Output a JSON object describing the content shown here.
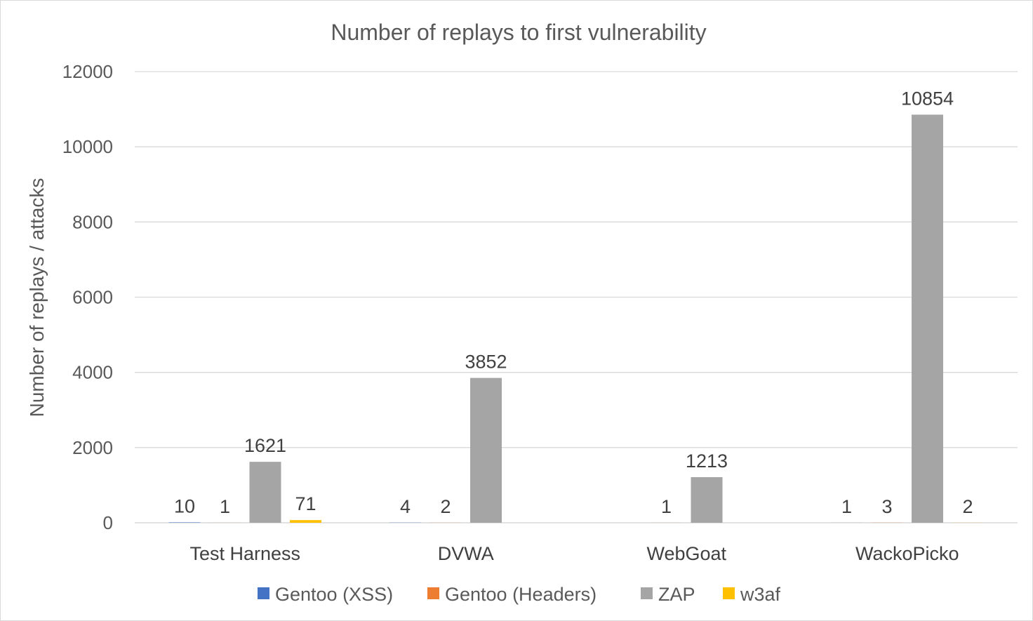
{
  "chart_data": {
    "type": "bar",
    "title": "Number of replays to first vulnerability",
    "xlabel": "",
    "ylabel": "Number of replays / attacks",
    "ylim": [
      0,
      12000
    ],
    "yticks": [
      0,
      2000,
      4000,
      6000,
      8000,
      10000,
      12000
    ],
    "categories": [
      "Test Harness",
      "DVWA",
      "WebGoat",
      "WackoPicko"
    ],
    "series": [
      {
        "name": "Gentoo (XSS)",
        "color": "#4472c4",
        "values": [
          10,
          4,
          null,
          1
        ],
        "labels": [
          "10",
          "4",
          "",
          "1"
        ]
      },
      {
        "name": "Gentoo (Headers)",
        "color": "#ed7d31",
        "values": [
          1,
          2,
          1,
          3
        ],
        "labels": [
          "1",
          "2",
          "1",
          "3"
        ]
      },
      {
        "name": "ZAP",
        "color": "#a5a5a5",
        "values": [
          1621,
          3852,
          1213,
          10854
        ],
        "labels": [
          "1621",
          "3852",
          "1213",
          "10854"
        ]
      },
      {
        "name": "w3af",
        "color": "#ffc000",
        "values": [
          71,
          null,
          null,
          2
        ],
        "labels": [
          "71",
          "",
          "",
          "2"
        ]
      }
    ],
    "grid": true,
    "legend": "bottom"
  }
}
